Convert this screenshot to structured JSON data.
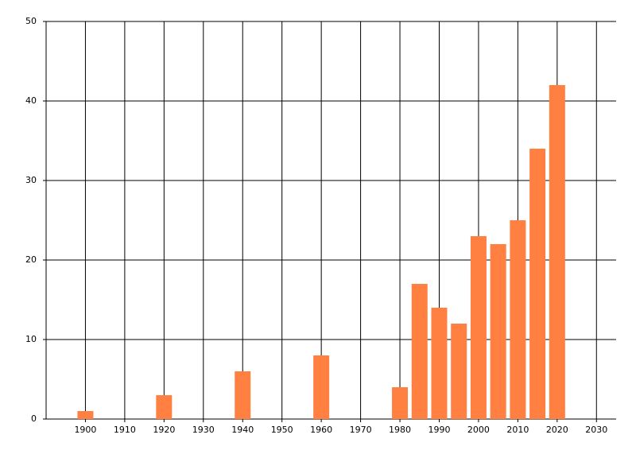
{
  "chart_data": {
    "type": "bar",
    "x": [
      1900,
      1920,
      1940,
      1960,
      1980,
      1985,
      1990,
      1995,
      2000,
      2005,
      2010,
      2015,
      2020
    ],
    "values": [
      1,
      3,
      6,
      8,
      4,
      17,
      14,
      12,
      23,
      22,
      25,
      34,
      42
    ],
    "color": "#ff8040",
    "xlim": [
      1890,
      2035
    ],
    "xticks": [
      1900,
      1910,
      1920,
      1930,
      1940,
      1950,
      1960,
      1970,
      1980,
      1990,
      2000,
      2010,
      2020,
      2030
    ],
    "ylim": [
      0,
      50
    ],
    "yticks": [
      0,
      10,
      20,
      30,
      40,
      50
    ],
    "grid": true
  }
}
